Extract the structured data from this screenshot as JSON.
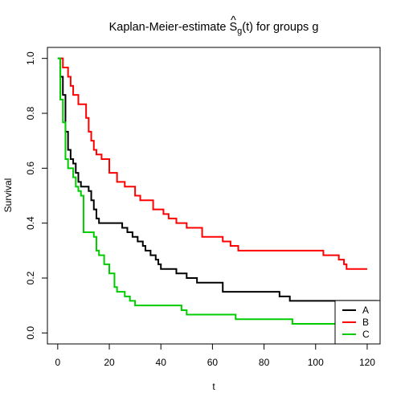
{
  "chart_data": {
    "type": "line",
    "step": true,
    "title": "Kaplan-Meier-estimate Ŝg(t) for groups g",
    "title_parts": {
      "prefix": "Kaplan-Meier-estimate ",
      "symbol": "S",
      "hat": "^",
      "subscript": "g",
      "suffix": "(t) for groups g"
    },
    "xlabel": "t",
    "ylabel": "Survival",
    "xlim": [
      -4,
      125
    ],
    "ylim": [
      -0.04,
      1.04
    ],
    "xticks": [
      0,
      20,
      40,
      60,
      80,
      100,
      120
    ],
    "yticks": [
      0.0,
      0.2,
      0.4,
      0.6,
      0.8,
      1.0
    ],
    "ytick_labels": [
      "0.0",
      "0.2",
      "0.4",
      "0.6",
      "0.8",
      "1.0"
    ],
    "grid": false,
    "legend": {
      "placement": "bottom-right",
      "entries": [
        "A",
        "B",
        "C"
      ]
    },
    "series": [
      {
        "name": "A",
        "color": "#000000",
        "x": [
          0,
          1,
          2,
          3,
          4,
          5,
          6,
          7,
          8,
          9,
          10,
          12,
          13,
          14,
          15,
          16,
          25,
          27,
          29,
          31,
          33,
          34,
          36,
          38,
          39,
          40,
          45,
          46,
          50,
          54,
          64,
          86,
          90,
          124
        ],
        "y": [
          1.0,
          0.933,
          0.867,
          0.733,
          0.667,
          0.633,
          0.617,
          0.583,
          0.55,
          0.533,
          0.533,
          0.517,
          0.483,
          0.45,
          0.417,
          0.4,
          0.383,
          0.367,
          0.35,
          0.333,
          0.317,
          0.3,
          0.283,
          0.267,
          0.25,
          0.233,
          0.233,
          0.217,
          0.2,
          0.183,
          0.15,
          0.133,
          0.117,
          0.117
        ]
      },
      {
        "name": "B",
        "color": "#ff0000",
        "x": [
          1,
          2,
          4,
          5,
          6,
          8,
          11,
          12,
          13,
          14,
          15,
          17,
          20,
          23,
          26,
          30,
          32,
          37,
          41,
          43,
          46,
          50,
          56,
          64,
          67,
          70,
          103,
          109,
          111,
          112,
          120
        ],
        "y": [
          1.0,
          0.967,
          0.933,
          0.9,
          0.867,
          0.833,
          0.783,
          0.733,
          0.7,
          0.667,
          0.65,
          0.633,
          0.583,
          0.55,
          0.533,
          0.5,
          0.483,
          0.45,
          0.433,
          0.417,
          0.4,
          0.383,
          0.35,
          0.333,
          0.317,
          0.3,
          0.283,
          0.267,
          0.25,
          0.233,
          0.233
        ]
      },
      {
        "name": "C",
        "color": "#00cc00",
        "x": [
          0,
          1,
          2,
          3,
          4,
          6,
          7,
          8,
          9,
          10,
          14,
          15,
          16,
          18,
          20,
          22,
          23,
          26,
          28,
          30,
          48,
          50,
          52,
          69,
          71,
          91,
          92,
          124
        ],
        "y": [
          1.0,
          0.85,
          0.767,
          0.633,
          0.6,
          0.567,
          0.533,
          0.517,
          0.5,
          0.367,
          0.35,
          0.3,
          0.283,
          0.25,
          0.217,
          0.167,
          0.15,
          0.133,
          0.117,
          0.1,
          0.083,
          0.067,
          0.067,
          0.05,
          0.05,
          0.033,
          0.033,
          0.033
        ]
      }
    ]
  }
}
